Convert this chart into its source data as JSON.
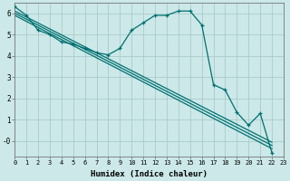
{
  "xlabel": "Humidex (Indice chaleur)",
  "bg_color": "#cce8e8",
  "grid_color": "#aacccc",
  "line_color": "#007070",
  "xlim": [
    0,
    23
  ],
  "ylim": [
    -0.7,
    6.5
  ],
  "main_x": [
    0,
    1,
    2,
    3,
    4,
    5,
    6,
    7,
    8,
    9,
    10,
    11,
    12,
    13,
    14,
    15,
    16,
    17,
    18,
    19,
    20,
    21,
    22
  ],
  "main_y": [
    6.3,
    5.9,
    5.2,
    5.0,
    4.65,
    4.55,
    4.35,
    4.15,
    4.05,
    4.35,
    5.2,
    5.55,
    5.9,
    5.9,
    6.1,
    6.1,
    5.45,
    2.65,
    2.4,
    1.35,
    0.75,
    1.3,
    -0.55
  ],
  "straight_lines": [
    {
      "x0": 0,
      "y0": 6.1,
      "x1": 22,
      "y1": -0.05
    },
    {
      "x0": 0,
      "y0": 6.0,
      "x1": 22,
      "y1": -0.2
    },
    {
      "x0": 0,
      "y0": 5.9,
      "x1": 22,
      "y1": -0.35
    }
  ],
  "xticks": [
    0,
    1,
    2,
    3,
    4,
    5,
    6,
    7,
    8,
    9,
    10,
    11,
    12,
    13,
    14,
    15,
    16,
    17,
    18,
    19,
    20,
    21,
    22,
    23
  ],
  "yticks": [
    0,
    1,
    2,
    3,
    4,
    5,
    6
  ],
  "ytick_labels": [
    "-0",
    "1",
    "2",
    "3",
    "4",
    "5",
    "6"
  ]
}
